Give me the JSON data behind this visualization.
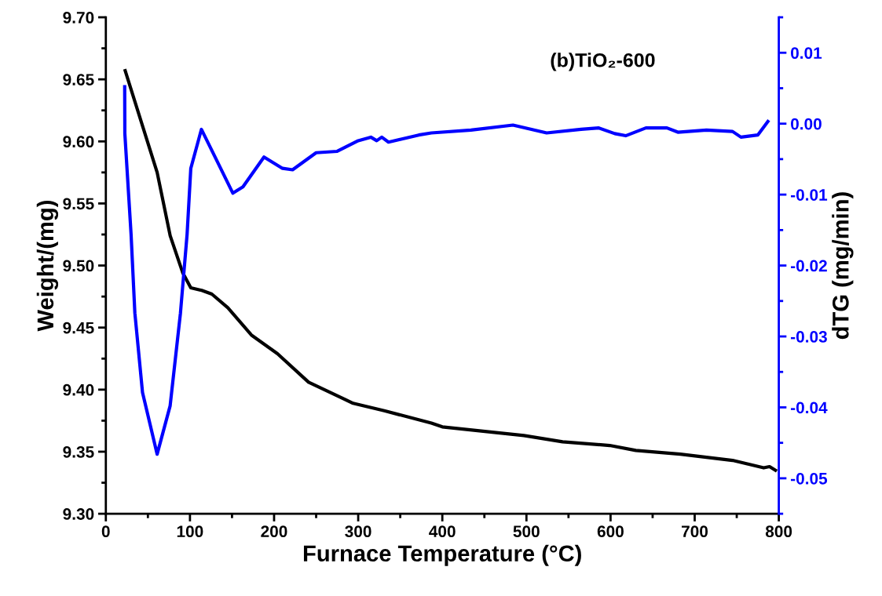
{
  "chart_data": {
    "type": "line",
    "xlabel": "Furnace Temperature (°C)",
    "ylabel": "Weight/(mg)",
    "y2label": "dTG (mg/min)",
    "annotations": [
      "(b)TiO₂-600"
    ],
    "xlim": [
      0,
      800
    ],
    "xticks": [
      0,
      100,
      200,
      300,
      400,
      500,
      600,
      700,
      800
    ],
    "ylim": [
      9.3,
      9.7
    ],
    "yticks": [
      {
        "value": 9.3,
        "label": "9.30"
      },
      {
        "value": 9.35,
        "label": "9.35"
      },
      {
        "value": 9.4,
        "label": "9.40"
      },
      {
        "value": 9.45,
        "label": "9.45"
      },
      {
        "value": 9.5,
        "label": "9.50"
      },
      {
        "value": 9.55,
        "label": "9.55"
      },
      {
        "value": 9.6,
        "label": "9.60"
      },
      {
        "value": 9.65,
        "label": "9.65"
      },
      {
        "value": 9.7,
        "label": "9.70"
      }
    ],
    "y2lim": [
      -0.055,
      0.015
    ],
    "y2ticks": [
      {
        "value": -0.05,
        "label": "-0.05"
      },
      {
        "value": -0.04,
        "label": "-0.04"
      },
      {
        "value": -0.03,
        "label": "-0.03"
      },
      {
        "value": -0.02,
        "label": "-0.02"
      },
      {
        "value": -0.01,
        "label": "-0.01"
      },
      {
        "value": 0,
        "label": "0.00"
      },
      {
        "value": 0.01,
        "label": "0.01"
      }
    ],
    "grid": false,
    "legend": false,
    "marker": "none",
    "line_style": "solid",
    "series": [
      {
        "color": "#000000",
        "x": [
          23,
          61,
          76.5,
          91.5,
          101,
          114,
          126,
          145,
          173,
          204,
          241,
          294,
          331,
          387,
          400,
          497,
          543,
          599,
          630,
          683,
          745,
          782,
          789,
          796
        ],
        "values": [
          9.657,
          9.575,
          9.524,
          9.494,
          9.482,
          9.48,
          9.477,
          9.466,
          9.444,
          9.429,
          9.406,
          9.389,
          9.383,
          9.373,
          9.37,
          9.363,
          9.358,
          9.355,
          9.351,
          9.348,
          9.343,
          9.337,
          9.338,
          9.335
        ]
      },
      {
        "color": "#0000ff",
        "axis": "y2",
        "x": [
          22.4,
          22.6,
          30,
          34.5,
          43.6,
          61,
          76.4,
          88.7,
          96.6,
          101,
          113.6,
          129,
          151,
          163,
          188,
          210,
          222,
          250,
          275,
          300,
          315,
          322,
          328,
          336,
          372,
          387,
          434,
          484,
          524,
          565,
          586,
          605,
          618,
          642,
          667,
          680,
          714,
          745,
          755,
          775,
          787
        ],
        "values": [
          0.0052,
          -0.0014,
          -0.0156,
          -0.0267,
          -0.0379,
          -0.0466,
          -0.0398,
          -0.0267,
          -0.0156,
          -0.0063,
          -0.0008,
          -0.0045,
          -0.0098,
          -0.0089,
          -0.0047,
          -0.0063,
          -0.0065,
          -0.0041,
          -0.0039,
          -0.0024,
          -0.0019,
          -0.0024,
          -0.0019,
          -0.0026,
          -0.0016,
          -0.0013,
          -0.0009,
          -0.0002,
          -0.0013,
          -0.0008,
          -0.0006,
          -0.0014,
          -0.0017,
          -0.0006,
          -0.0006,
          -0.0012,
          -0.0009,
          -0.0011,
          -0.0019,
          -0.0016,
          0.0003
        ]
      }
    ]
  }
}
